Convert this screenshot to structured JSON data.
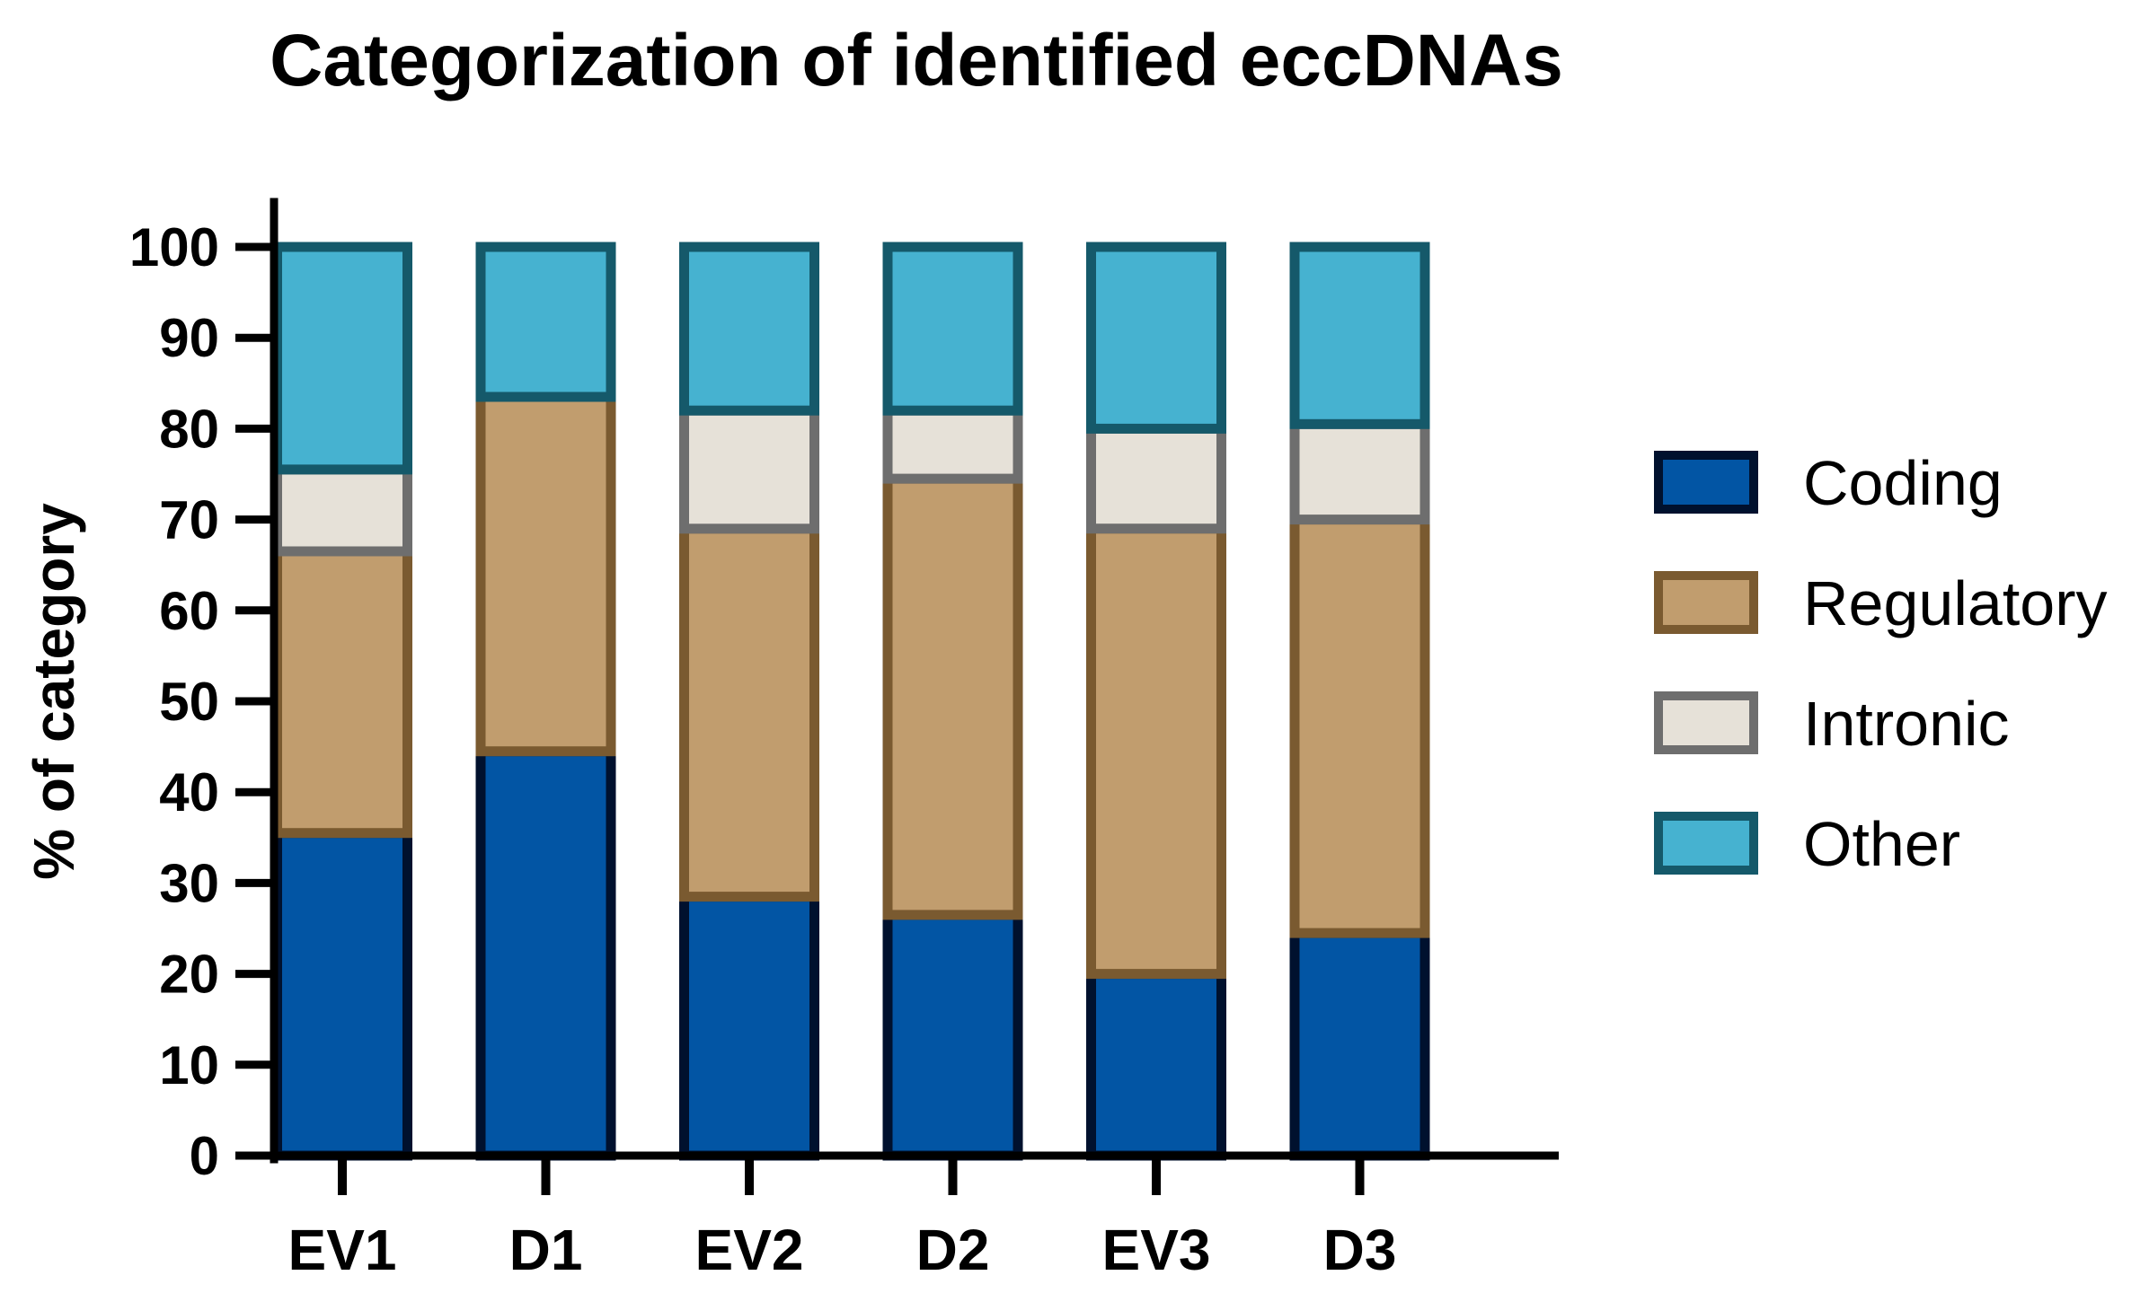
{
  "chart_data": {
    "type": "bar",
    "stacked": true,
    "title": "Categorization of identified eccDNAs",
    "xlabel": "",
    "ylabel": "% of category",
    "ylim": [
      0,
      100
    ],
    "yticks": [
      0,
      10,
      20,
      30,
      40,
      50,
      60,
      70,
      80,
      90,
      100
    ],
    "categories": [
      "EV1",
      "D1",
      "EV2",
      "D2",
      "EV3",
      "D3"
    ],
    "series": [
      {
        "name": "Coding",
        "values": [
          35.5,
          44.5,
          28.5,
          26.5,
          20.0,
          24.5
        ],
        "fill": "#0255a4",
        "stroke": "#00112e"
      },
      {
        "name": "Regulatory",
        "values": [
          31.0,
          39.0,
          40.5,
          48.0,
          49.0,
          45.5
        ],
        "fill": "#c19d6e",
        "stroke": "#7a5a30"
      },
      {
        "name": "Intronic",
        "values": [
          9.0,
          0.0,
          13.0,
          7.5,
          11.0,
          10.5
        ],
        "fill": "#e6e1d8",
        "stroke": "#6e6e6e"
      },
      {
        "name": "Other",
        "values": [
          24.5,
          16.5,
          18.0,
          18.0,
          20.0,
          19.5
        ],
        "fill": "#46b2d0",
        "stroke": "#15596a"
      }
    ],
    "legend": {
      "position": "right",
      "entries": [
        "Coding",
        "Regulatory",
        "Intronic",
        "Other"
      ]
    },
    "grid": false,
    "axis_color": "#000000"
  }
}
